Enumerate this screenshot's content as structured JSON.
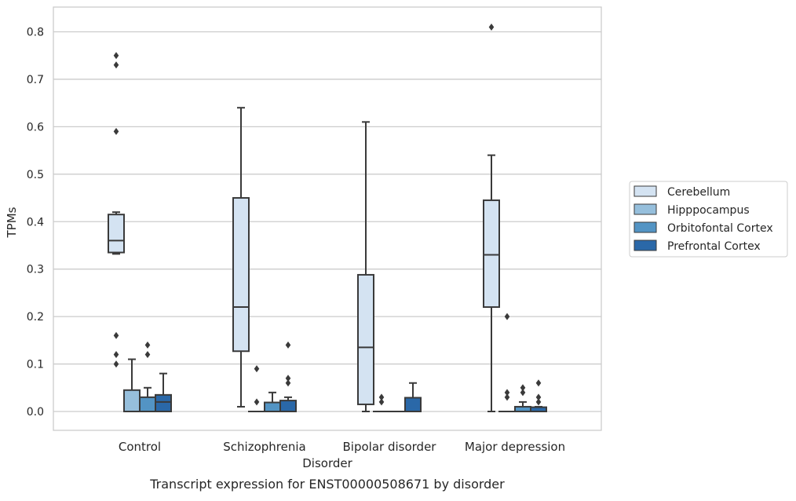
{
  "caption": "Transcript expression for ENST00000508671 by disorder",
  "chart_data": {
    "type": "box",
    "xlabel": "Disorder",
    "ylabel": "TPMs",
    "ylim": [
      -0.04,
      0.85
    ],
    "yticks": [
      0.0,
      0.1,
      0.2,
      0.3,
      0.4,
      0.5,
      0.6,
      0.7,
      0.8
    ],
    "ytick_labels": [
      "0.0",
      "0.1",
      "0.2",
      "0.3",
      "0.4",
      "0.5",
      "0.6",
      "0.7",
      "0.8"
    ],
    "grid": "horizontal",
    "legend_position": "right",
    "categories": [
      "Control",
      "Schizophrenia",
      "Bipolar disorder",
      "Major depression"
    ],
    "series": [
      {
        "name": "Cerebellum",
        "color": "#d4e3f2",
        "boxes": [
          {
            "q1": 0.335,
            "median": 0.36,
            "q3": 0.415,
            "whislo": 0.332,
            "whishi": 0.42,
            "fliers": [
              0.75,
              0.73,
              0.59,
              0.16,
              0.12,
              0.1
            ]
          },
          {
            "q1": 0.127,
            "median": 0.22,
            "q3": 0.45,
            "whislo": 0.01,
            "whishi": 0.64,
            "fliers": []
          },
          {
            "q1": 0.015,
            "median": 0.135,
            "q3": 0.288,
            "whislo": 0.0,
            "whishi": 0.61,
            "fliers": []
          },
          {
            "q1": 0.22,
            "median": 0.33,
            "q3": 0.445,
            "whislo": 0.0,
            "whishi": 0.54,
            "fliers": [
              0.81
            ]
          }
        ]
      },
      {
        "name": "Hipppocampus",
        "color": "#96bfdc",
        "boxes": [
          {
            "q1": 0.0,
            "median": 0.0,
            "q3": 0.045,
            "whislo": 0.0,
            "whishi": 0.11,
            "fliers": []
          },
          {
            "q1": 0.0,
            "median": 0.0,
            "q3": 0.0,
            "whislo": 0.0,
            "whishi": 0.0,
            "fliers": [
              0.09,
              0.02
            ]
          },
          {
            "q1": 0.0,
            "median": 0.0,
            "q3": 0.0,
            "whislo": 0.0,
            "whishi": 0.0,
            "fliers": [
              0.03,
              0.02
            ]
          },
          {
            "q1": 0.0,
            "median": 0.0,
            "q3": 0.0,
            "whislo": 0.0,
            "whishi": 0.0,
            "fliers": [
              0.2,
              0.04,
              0.03
            ]
          }
        ]
      },
      {
        "name": "Orbitofontal Cortex",
        "color": "#5394c4",
        "boxes": [
          {
            "q1": 0.0,
            "median": 0.0,
            "q3": 0.03,
            "whislo": 0.0,
            "whishi": 0.05,
            "fliers": [
              0.14,
              0.12
            ]
          },
          {
            "q1": 0.0,
            "median": 0.0,
            "q3": 0.019,
            "whislo": 0.0,
            "whishi": 0.04,
            "fliers": []
          },
          {
            "q1": 0.0,
            "median": 0.0,
            "q3": 0.0,
            "whislo": 0.0,
            "whishi": 0.0,
            "fliers": []
          },
          {
            "q1": 0.0,
            "median": 0.0,
            "q3": 0.01,
            "whislo": 0.0,
            "whishi": 0.02,
            "fliers": [
              0.05,
              0.04
            ]
          }
        ]
      },
      {
        "name": "Prefrontal Cortex",
        "color": "#2a68a8",
        "boxes": [
          {
            "q1": 0.0,
            "median": 0.02,
            "q3": 0.035,
            "whislo": 0.0,
            "whishi": 0.08,
            "fliers": []
          },
          {
            "q1": 0.0,
            "median": 0.0,
            "q3": 0.023,
            "whislo": 0.0,
            "whishi": 0.03,
            "fliers": [
              0.14,
              0.07,
              0.06
            ]
          },
          {
            "q1": 0.0,
            "median": 0.0,
            "q3": 0.029,
            "whislo": 0.0,
            "whishi": 0.06,
            "fliers": []
          },
          {
            "q1": 0.0,
            "median": 0.0,
            "q3": 0.009,
            "whislo": 0.0,
            "whishi": 0.01,
            "fliers": [
              0.06,
              0.03,
              0.02
            ]
          }
        ]
      }
    ]
  }
}
